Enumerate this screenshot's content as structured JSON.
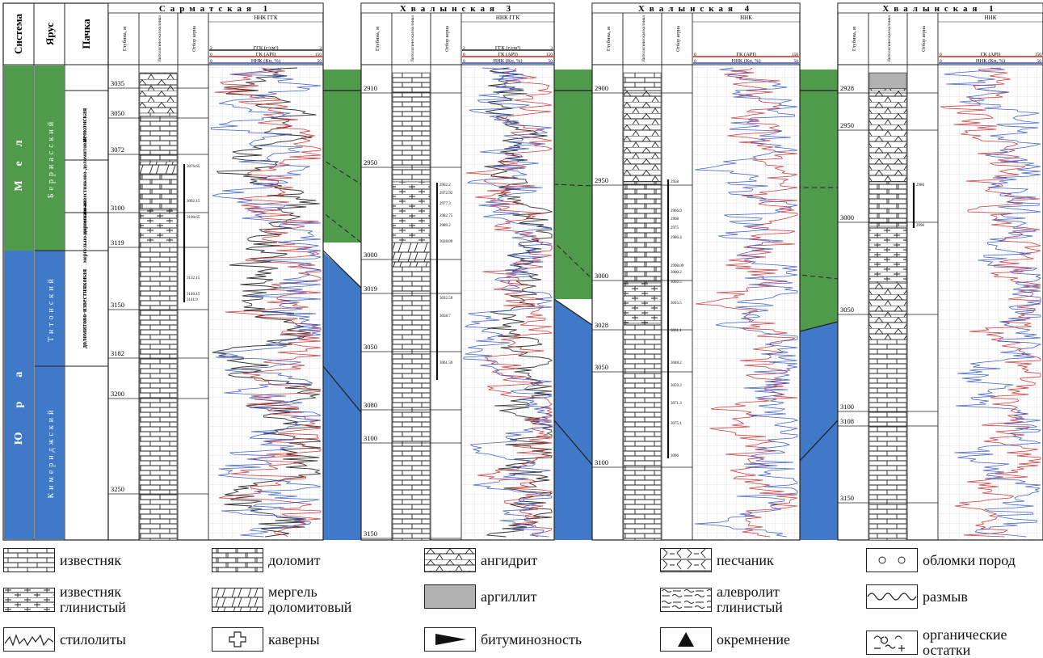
{
  "header": {
    "system": "Система",
    "stage": "Ярус",
    "pack": "Пачка",
    "depth": "Глубина, м",
    "litho": "Литологическая колонка",
    "core": "Отбор керна"
  },
  "systems": [
    "Мел",
    "Юра"
  ],
  "stages": [
    "Берриасский",
    "Титонский",
    "Кимериджский"
  ],
  "packs": [
    "неокомская",
    "мергельно-известняково-доломитовая",
    "мергельно-доломитовая",
    "доломитово-известняковая"
  ],
  "wells": [
    {
      "title": "Сарматская 1",
      "log_header": "ННК ГГК",
      "curves": [
        {
          "label": "ГГК (г/см³)",
          "min": "2",
          "max": "3",
          "color": "#222222"
        },
        {
          "label": "ГК (API)",
          "min": "0",
          "max": "150",
          "color": "#d22020"
        },
        {
          "label": "ННК (Кп, %)",
          "min": "0",
          "max": "50",
          "color": "#2a4fd0"
        }
      ],
      "depths": [
        "3035",
        "3050",
        "3072",
        "3100",
        "3119",
        "3150",
        "3182",
        "3200",
        "3250"
      ],
      "core_notes": [
        "3076.65",
        "3092.15",
        "3100.65",
        "3132.15",
        "3140.15",
        "3141.9"
      ]
    },
    {
      "title": "Хвалынская 3",
      "log_header": "ННК ГГК",
      "curves": [
        {
          "label": "ГГК (г/см³)",
          "min": "2",
          "max": "3",
          "color": "#222222"
        },
        {
          "label": "ГК (API)",
          "min": "0",
          "max": "150",
          "color": "#d22020"
        },
        {
          "label": "ННК (Кп, %)",
          "min": "0",
          "max": "50",
          "color": "#2a4fd0"
        }
      ],
      "depths": [
        "2910",
        "2950",
        "3000",
        "3019",
        "3050",
        "3080",
        "3100",
        "3150"
      ],
      "core_notes": [
        "2962.2",
        "2972.92",
        "2977.3",
        "2982.75",
        "2989.2",
        "3028.09",
        "3032.59",
        "3058.7",
        "3061.59"
      ]
    },
    {
      "title": "Хвалынская 4",
      "log_header": "ННК",
      "curves": [
        {
          "label": "ГК (API)",
          "min": "0",
          "max": "150",
          "color": "#d22020"
        },
        {
          "label": "ННК (Кп, %)",
          "min": "0",
          "max": "50",
          "color": "#2a4fd0"
        }
      ],
      "depths": [
        "2900",
        "2950",
        "3000",
        "3028",
        "3050",
        "3100"
      ],
      "core_notes": [
        "2958",
        "2966.9",
        "2968",
        "2975",
        "2986.4",
        "2998.09",
        "3000.2",
        "3002.5",
        "3015.5",
        "3031.1",
        "3048.2",
        "3059.2",
        "3071.3",
        "3075.1",
        "3096"
      ]
    },
    {
      "title": "Хвалынская 1",
      "log_header": "ННК",
      "curves": [
        {
          "label": "ГК (API)",
          "min": "0",
          "max": "150",
          "color": "#d22020"
        },
        {
          "label": "ННК (Кп, %)",
          "min": "0",
          "max": "50",
          "color": "#2a4fd0"
        }
      ],
      "depths": [
        "2928",
        "2950",
        "3000",
        "3050",
        "3100",
        "3108",
        "3150"
      ],
      "core_notes": [
        "2980",
        "2990"
      ]
    }
  ],
  "legend": [
    {
      "key": "limestone",
      "label": "известняк"
    },
    {
      "key": "dolomite",
      "label": "доломит"
    },
    {
      "key": "anhydrite",
      "label": "ангидрит"
    },
    {
      "key": "sandstone",
      "label": "песчаник"
    },
    {
      "key": "clasts",
      "label": "обломки пород"
    },
    {
      "key": "clay-limestone",
      "label": "известняк\nглинистый"
    },
    {
      "key": "marl",
      "label": "мергель\nдоломитовый"
    },
    {
      "key": "argillite",
      "label": "аргиллит"
    },
    {
      "key": "siltstone",
      "label": "алевролит\nглинистый"
    },
    {
      "key": "erosion",
      "label": "размыв"
    },
    {
      "key": "stylolites",
      "label": "стилолиты"
    },
    {
      "key": "caverns",
      "label": "каверны"
    },
    {
      "key": "bitumen",
      "label": "битуминозность"
    },
    {
      "key": "silicification",
      "label": "окремнение"
    },
    {
      "key": "fossils",
      "label": "органические\nостатки"
    }
  ],
  "colors": {
    "cretaceous": "#4f9a4b",
    "jurassic": "#3f79c8",
    "gr": "#d22020",
    "nnk": "#2a4fd0",
    "ggk": "#222222"
  }
}
